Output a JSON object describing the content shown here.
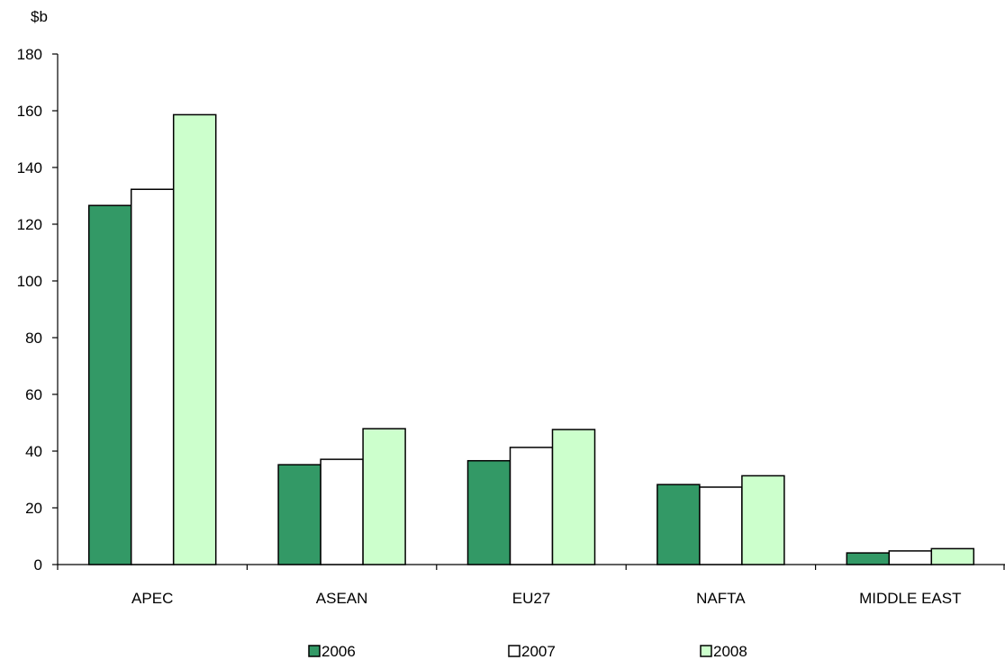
{
  "chart_data": {
    "type": "bar",
    "ylabel": "$b",
    "categories": [
      "APEC",
      "ASEAN",
      "EU27",
      "NAFTA",
      "MIDDLE EAST"
    ],
    "series": [
      {
        "name": "2006",
        "values": [
          126.6,
          35.2,
          36.6,
          28.2,
          4.1
        ],
        "color": "#339966"
      },
      {
        "name": "2007",
        "values": [
          132.3,
          37.1,
          41.3,
          27.3,
          4.8
        ],
        "color": "#ffffff"
      },
      {
        "name": "2008",
        "values": [
          158.6,
          47.9,
          47.6,
          31.3,
          5.6
        ],
        "color": "#ccffcc"
      }
    ],
    "ylim": [
      0,
      180
    ],
    "yticks": [
      0,
      20,
      40,
      60,
      80,
      100,
      120,
      140,
      160,
      180
    ],
    "grid": false,
    "legend_position": "bottom",
    "bar_outline_color": "#000000"
  }
}
